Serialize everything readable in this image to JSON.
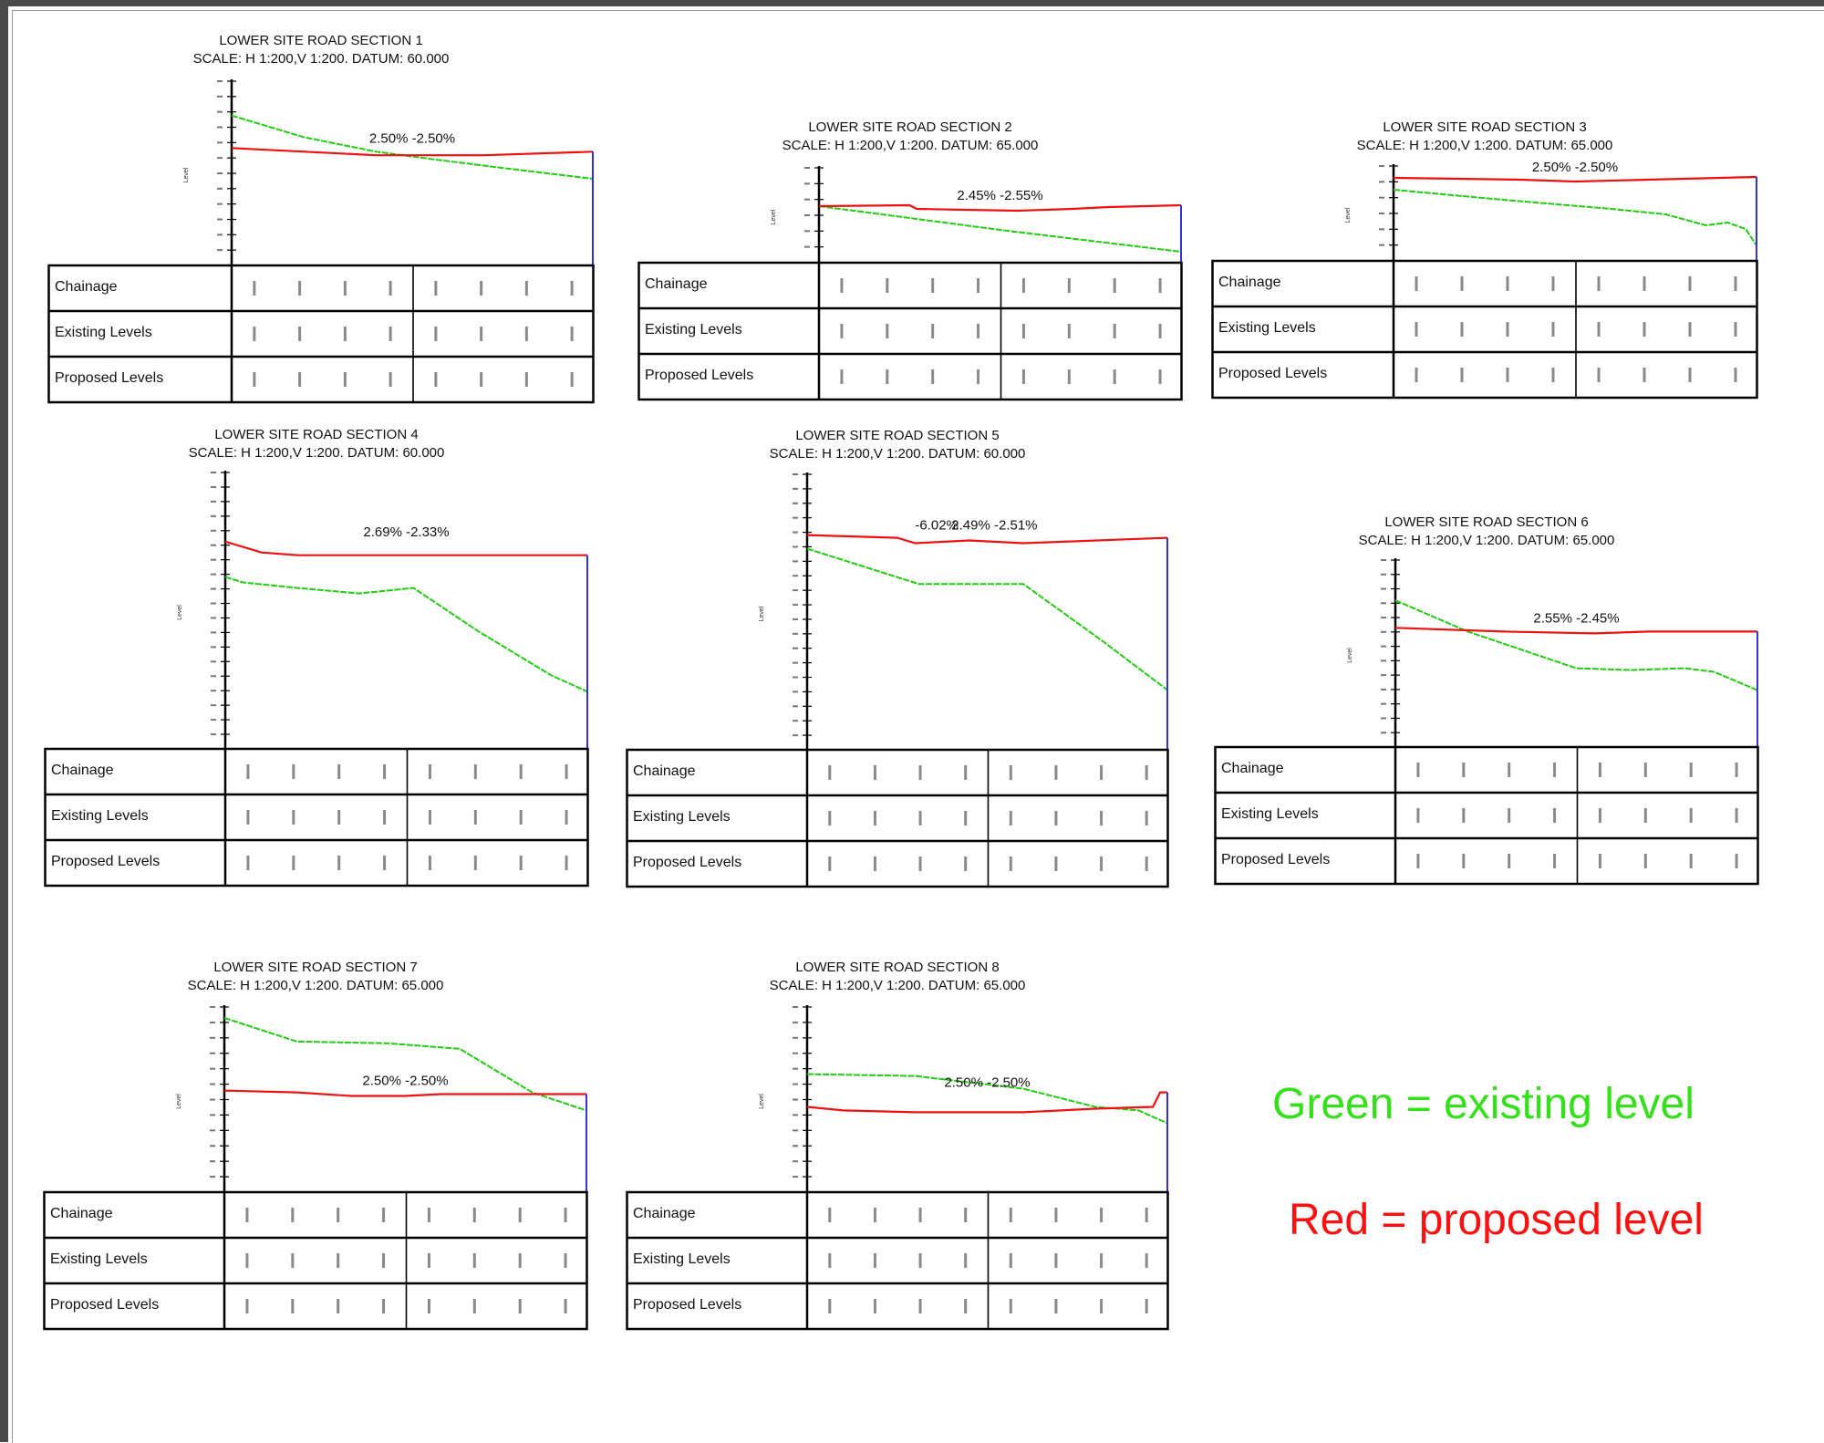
{
  "sections": [
    {
      "id": "s1",
      "title": "LOWER SITE ROAD SECTION 1",
      "scale": "SCALE: H 1:200,V 1:200. DATUM: 60.000",
      "grade_label": "2.50% -2.50%",
      "existing": [
        [
          0,
          0.17
        ],
        [
          0.2,
          0.29
        ],
        [
          0.4,
          0.37
        ],
        [
          0.55,
          0.41
        ],
        [
          0.75,
          0.46
        ],
        [
          1,
          0.52
        ]
      ],
      "proposed": [
        [
          0,
          0.35
        ],
        [
          0.1,
          0.36
        ],
        [
          0.4,
          0.39
        ],
        [
          0.7,
          0.39
        ],
        [
          1,
          0.37
        ]
      ]
    },
    {
      "id": "s2",
      "title": "LOWER SITE ROAD SECTION 2",
      "scale": "SCALE: H 1:200,V 1:200. DATUM: 65.000",
      "grade_label": "2.45% -2.55%",
      "existing": [
        [
          0,
          0.38
        ],
        [
          0.25,
          0.51
        ],
        [
          0.5,
          0.64
        ],
        [
          0.75,
          0.76
        ],
        [
          1,
          0.88
        ]
      ],
      "proposed": [
        [
          0,
          0.38
        ],
        [
          0.25,
          0.37
        ],
        [
          0.27,
          0.41
        ],
        [
          0.4,
          0.42
        ],
        [
          0.55,
          0.43
        ],
        [
          0.7,
          0.41
        ],
        [
          0.8,
          0.39
        ],
        [
          1,
          0.37
        ]
      ]
    },
    {
      "id": "s3",
      "title": "LOWER SITE ROAD SECTION 3",
      "scale": "SCALE: H 1:200,V 1:200. DATUM: 65.000",
      "grade_label": "2.50% -2.50%",
      "existing": [
        [
          0,
          0.22
        ],
        [
          0.3,
          0.33
        ],
        [
          0.6,
          0.43
        ],
        [
          0.75,
          0.49
        ],
        [
          0.86,
          0.61
        ],
        [
          0.92,
          0.58
        ],
        [
          0.97,
          0.65
        ],
        [
          1,
          0.83
        ]
      ],
      "proposed": [
        [
          0,
          0.09
        ],
        [
          0.35,
          0.11
        ],
        [
          0.5,
          0.13
        ],
        [
          0.7,
          0.11
        ],
        [
          1,
          0.08
        ]
      ]
    },
    {
      "id": "s4",
      "title": "LOWER SITE ROAD SECTION 4",
      "scale": "SCALE: H 1:200,V 1:200. DATUM: 60.000",
      "grade_label": "2.69% -2.33%",
      "existing": [
        [
          0,
          0.37
        ],
        [
          0.05,
          0.39
        ],
        [
          0.2,
          0.41
        ],
        [
          0.37,
          0.43
        ],
        [
          0.52,
          0.41
        ],
        [
          0.7,
          0.57
        ],
        [
          0.9,
          0.73
        ],
        [
          1,
          0.79
        ]
      ],
      "proposed": [
        [
          0,
          0.24
        ],
        [
          0.1,
          0.28
        ],
        [
          0.2,
          0.29
        ],
        [
          0.35,
          0.29
        ],
        [
          0.5,
          0.29
        ],
        [
          0.65,
          0.29
        ],
        [
          0.8,
          0.29
        ],
        [
          1,
          0.29
        ]
      ]
    },
    {
      "id": "s5",
      "title": "LOWER SITE ROAD SECTION 5",
      "scale": "SCALE: H 1:200,V 1:200. DATUM: 60.000",
      "grade_label": "-6.02%",
      "grade_label_2": "2.49% -2.51%",
      "existing": [
        [
          0,
          0.26
        ],
        [
          0.31,
          0.39
        ],
        [
          0.6,
          0.39
        ],
        [
          0.82,
          0.6
        ],
        [
          1,
          0.78
        ]
      ],
      "proposed": [
        [
          0,
          0.21
        ],
        [
          0.25,
          0.22
        ],
        [
          0.3,
          0.24
        ],
        [
          0.45,
          0.23
        ],
        [
          0.6,
          0.24
        ],
        [
          1,
          0.22
        ]
      ]
    },
    {
      "id": "s6",
      "title": "LOWER SITE ROAD SECTION 6",
      "scale": "SCALE: H 1:200,V 1:200. DATUM: 65.000",
      "grade_label": "2.55% -2.45%",
      "existing": [
        [
          0,
          0.2
        ],
        [
          0.2,
          0.37
        ],
        [
          0.5,
          0.57
        ],
        [
          0.65,
          0.58
        ],
        [
          0.8,
          0.57
        ],
        [
          0.88,
          0.59
        ],
        [
          0.94,
          0.64
        ],
        [
          1,
          0.69
        ]
      ],
      "proposed": [
        [
          0,
          0.35
        ],
        [
          0.3,
          0.37
        ],
        [
          0.55,
          0.38
        ],
        [
          0.7,
          0.37
        ],
        [
          1,
          0.37
        ]
      ]
    },
    {
      "id": "s7",
      "title": "LOWER SITE ROAD SECTION 7",
      "scale": "SCALE: H 1:200,V 1:200. DATUM: 65.000",
      "grade_label": "2.50% -2.50%",
      "existing": [
        [
          0,
          0.04
        ],
        [
          0.2,
          0.17
        ],
        [
          0.45,
          0.18
        ],
        [
          0.65,
          0.21
        ],
        [
          0.85,
          0.45
        ],
        [
          1,
          0.55
        ]
      ],
      "proposed": [
        [
          0,
          0.44
        ],
        [
          0.2,
          0.45
        ],
        [
          0.35,
          0.47
        ],
        [
          0.5,
          0.47
        ],
        [
          0.6,
          0.46
        ],
        [
          1,
          0.46
        ]
      ]
    },
    {
      "id": "s8",
      "title": "LOWER SITE ROAD SECTION 8",
      "scale": "SCALE: H 1:200,V 1:200. DATUM: 65.000",
      "grade_label": "2.50% -2.50%",
      "existing": [
        [
          0,
          0.35
        ],
        [
          0.3,
          0.36
        ],
        [
          0.6,
          0.43
        ],
        [
          0.8,
          0.53
        ],
        [
          0.92,
          0.55
        ],
        [
          1,
          0.62
        ]
      ],
      "proposed": [
        [
          0,
          0.53
        ],
        [
          0.1,
          0.55
        ],
        [
          0.3,
          0.56
        ],
        [
          0.6,
          0.56
        ],
        [
          0.8,
          0.54
        ],
        [
          0.96,
          0.53
        ],
        [
          0.98,
          0.45
        ],
        [
          1,
          0.45
        ]
      ]
    }
  ],
  "table_rows": [
    "Chainage",
    "Existing Levels",
    "Proposed Levels"
  ],
  "axis_label": "Level",
  "legend": {
    "green": "Green = existing level",
    "red": "Red = proposed level"
  },
  "colors": {
    "existing": "#22cc11",
    "proposed": "#ee1111",
    "axis": "#000000",
    "end": "#3333dd"
  }
}
